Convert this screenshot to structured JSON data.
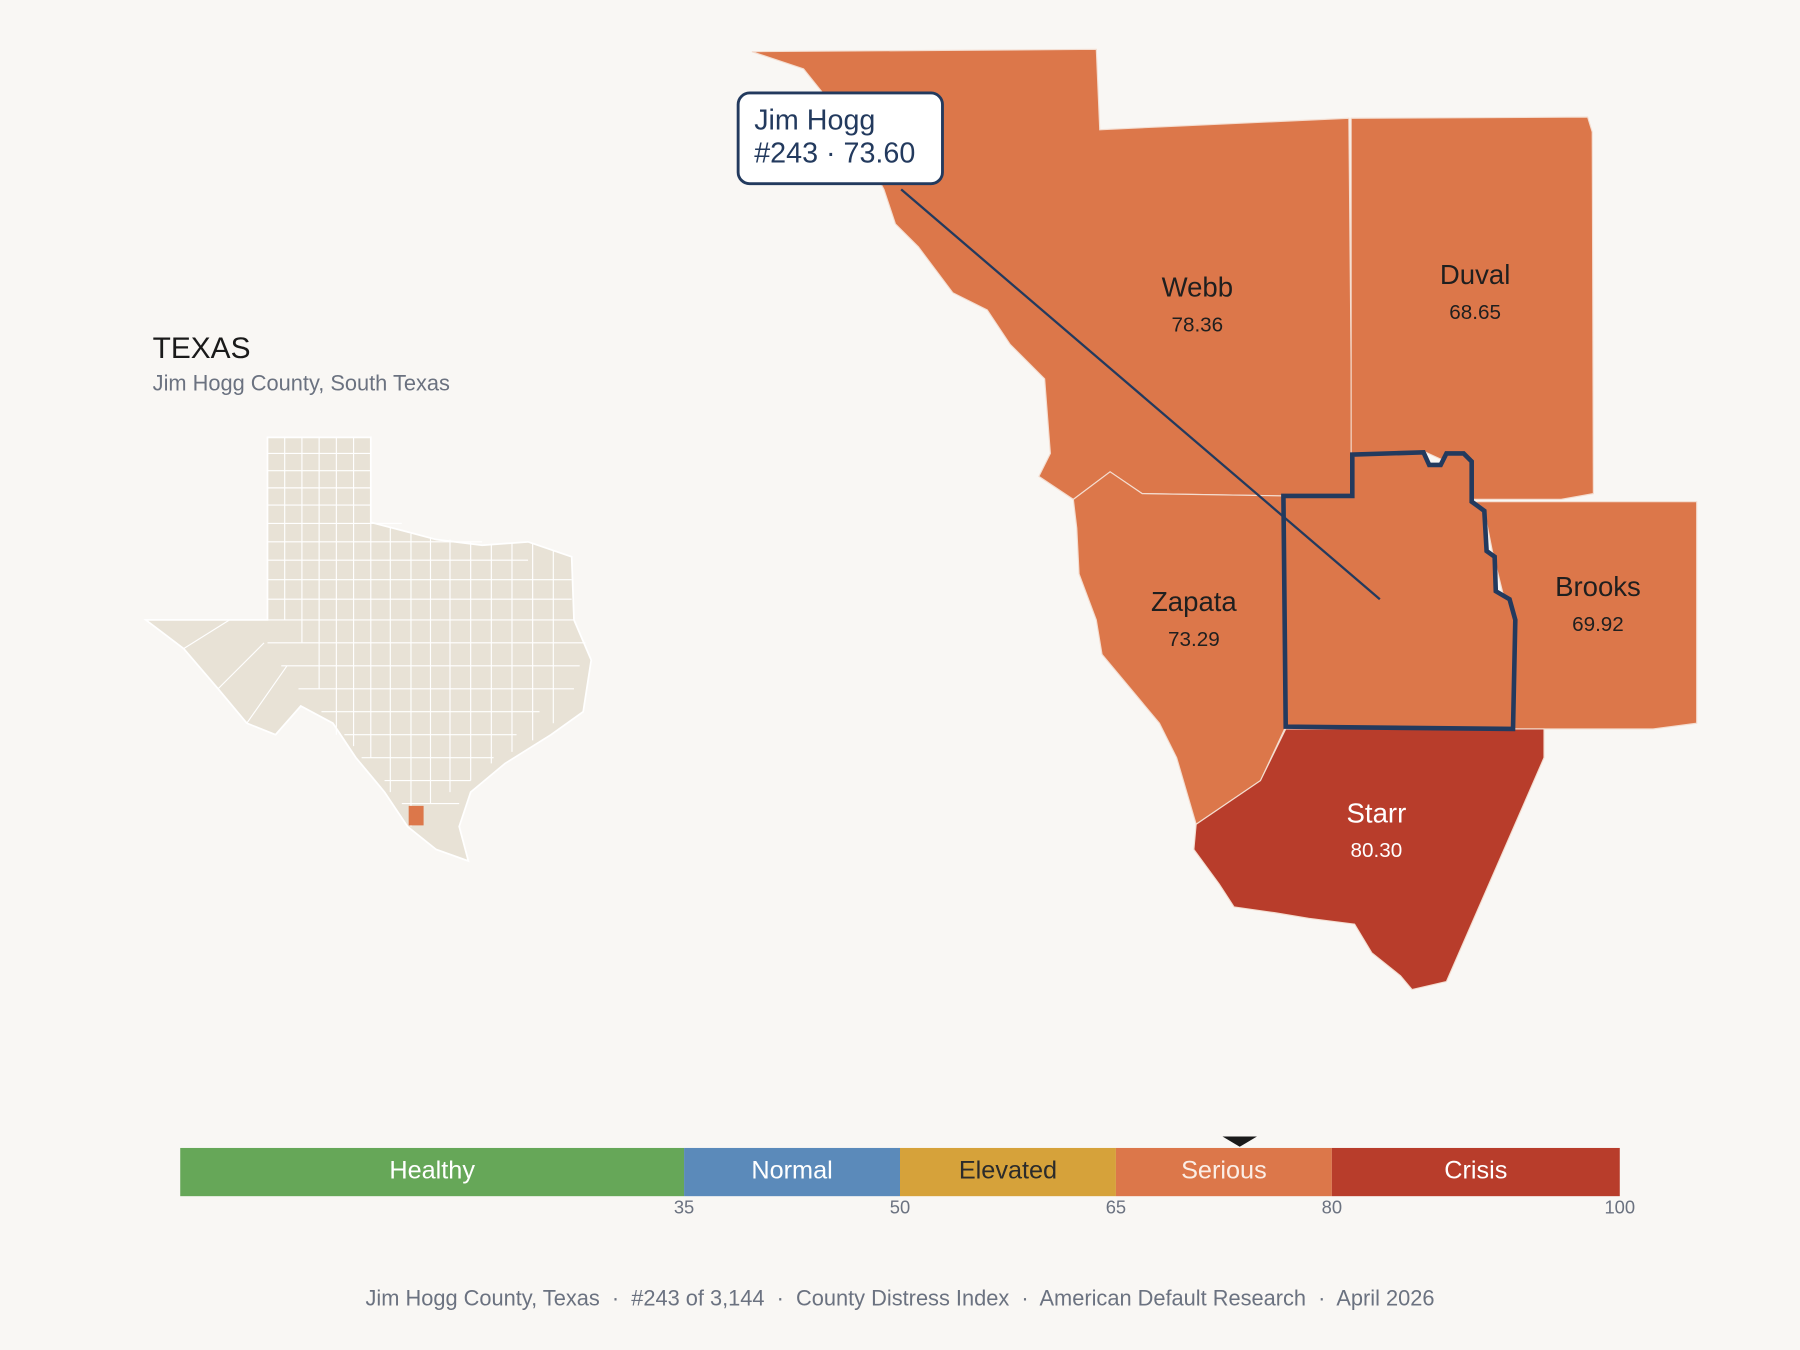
{
  "header": {
    "title": "TEXAS",
    "subtitle": "Jim Hogg County, South Texas"
  },
  "callout": {
    "name": "Jim Hogg",
    "detail": "#243 · 73.60"
  },
  "counties": [
    {
      "name": "Webb",
      "value": "78.36",
      "color": "#dc774a"
    },
    {
      "name": "Duval",
      "value": "68.65",
      "color": "#dc774a"
    },
    {
      "name": "Zapata",
      "value": "73.29",
      "color": "#dc774a"
    },
    {
      "name": "Brooks",
      "value": "69.92",
      "color": "#dc774a"
    },
    {
      "name": "Starr",
      "value": "80.30",
      "color": "#b83d2b"
    }
  ],
  "scale": {
    "lim": [
      0,
      100
    ],
    "ticks": [
      35,
      50,
      65,
      80,
      100
    ],
    "bands": [
      {
        "label": "Healthy",
        "color": "#66a758",
        "text_color": "#ffffff"
      },
      {
        "label": "Normal",
        "color": "#5b8aba",
        "text_color": "#ffffff"
      },
      {
        "label": "Elevated",
        "color": "#d6a23a",
        "text_color": "#2b2b2b"
      },
      {
        "label": "Serious",
        "color": "#dc774a",
        "text_color": "#fbeee6"
      },
      {
        "label": "Crisis",
        "color": "#b83d2b",
        "text_color": "#ffffff"
      }
    ],
    "marker": 73.6
  },
  "footer": "Jim Hogg County, Texas  ·  #243 of 3,144  ·  County Distress Index  ·  American Default Research  ·  April 2026"
}
